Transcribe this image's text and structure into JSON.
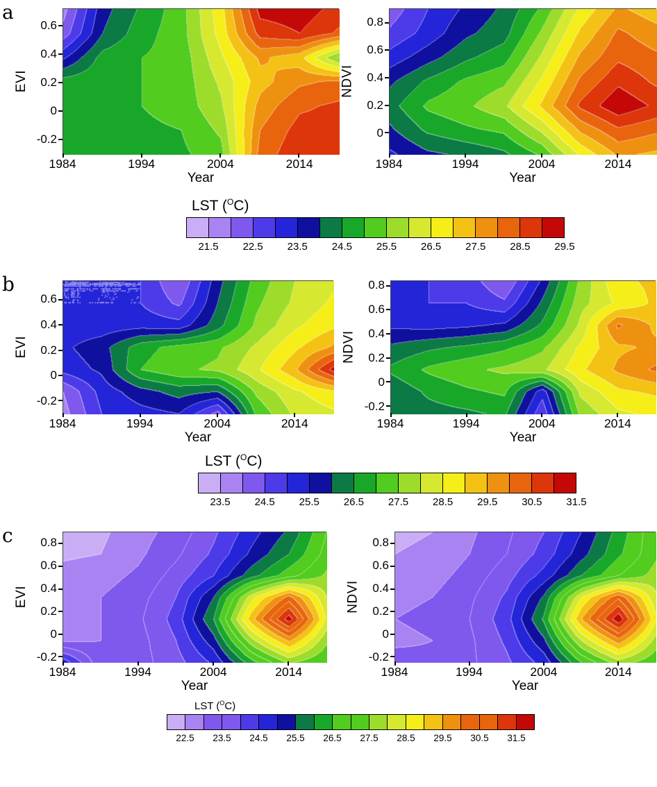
{
  "palette": [
    "#c9aef5",
    "#a983f2",
    "#7f58ee",
    "#4d3bea",
    "#2424d8",
    "#10109e",
    "#0c7a45",
    "#19a72a",
    "#52cc1e",
    "#9ddc2b",
    "#d6e930",
    "#f5ee19",
    "#f4c115",
    "#ef9110",
    "#e8650d",
    "#dc360a",
    "#c40808"
  ],
  "contour_line_color": "#d9d9d9",
  "chart_data": [
    {
      "type": "heatmap",
      "panel": "a",
      "colorbar": {
        "title": "LST (°C)",
        "title_pre": "LST (",
        "title_sup": "O",
        "title_post": "C)",
        "ticks": [
          21.5,
          22.5,
          23.5,
          24.5,
          25.5,
          26.5,
          27.5,
          28.5,
          29.5
        ],
        "tick_labels": [
          "21.5",
          "22.5",
          "23.5",
          "24.5",
          "25.5",
          "26.5",
          "27.5",
          "28.5",
          "29.5"
        ],
        "range": [
          21.0,
          29.5
        ],
        "interval": 0.5
      },
      "plots": [
        {
          "ylabel": "EVI",
          "xlabel": "Year",
          "x_range": [
            1984,
            2019
          ],
          "y_range": [
            -0.3,
            0.72
          ],
          "xticks": [
            1984,
            1994,
            2004,
            2014
          ],
          "xtick_labels": [
            "1984",
            "1994",
            "2004",
            "2014"
          ],
          "yticks": [
            0.6,
            0.4,
            0.2,
            0,
            -0.2
          ],
          "ytick_labels": [
            "0.6",
            "0.4",
            "0.2",
            "0",
            "-0.2"
          ],
          "x_years": [
            1984,
            1989,
            1994,
            1999,
            2004,
            2009,
            2014,
            2019
          ],
          "grid_y": [
            0.72,
            0.55,
            0.35,
            0.18,
            0.02,
            -0.15,
            -0.3
          ],
          "lst_values": [
            [
              21.8,
              23.8,
              24.6,
              25.3,
              26.8,
              29.2,
              29.3,
              28.8
            ],
            [
              22.2,
              24.0,
              24.8,
              25.3,
              26.7,
              28.7,
              29.0,
              28.4
            ],
            [
              23.4,
              24.7,
              25.0,
              25.2,
              26.4,
              27.6,
              27.2,
              25.4
            ],
            [
              24.7,
              24.9,
              25.0,
              25.2,
              26.1,
              27.3,
              27.9,
              28.1
            ],
            [
              24.9,
              25.0,
              25.0,
              25.2,
              25.9,
              27.7,
              28.4,
              28.6
            ],
            [
              24.8,
              24.8,
              24.9,
              25.0,
              25.6,
              28.0,
              28.7,
              28.7
            ],
            [
              24.6,
              24.6,
              24.7,
              24.9,
              25.3,
              28.2,
              28.9,
              28.9
            ]
          ]
        },
        {
          "ylabel": "NDVI",
          "xlabel": "Year",
          "x_range": [
            1984,
            2019
          ],
          "y_range": [
            -0.15,
            0.9
          ],
          "xticks": [
            1984,
            1994,
            2004,
            2014
          ],
          "xtick_labels": [
            "1984",
            "1994",
            "2004",
            "2014"
          ],
          "yticks": [
            0.8,
            0.6,
            0.4,
            0.2,
            0
          ],
          "ytick_labels": [
            "0.8",
            "0.6",
            "0.4",
            "0.2",
            "0"
          ],
          "x_years": [
            1984,
            1989,
            1994,
            1999,
            2004,
            2009,
            2014,
            2019
          ],
          "grid_y": [
            0.9,
            0.7,
            0.5,
            0.3,
            0.15,
            0.0,
            -0.15
          ],
          "lst_values": [
            [
              22.2,
              23.0,
              23.6,
              24.1,
              25.1,
              26.6,
              27.6,
              27.2
            ],
            [
              22.6,
              23.2,
              23.9,
              24.3,
              25.6,
              27.1,
              28.1,
              27.7
            ],
            [
              23.2,
              23.8,
              24.4,
              24.8,
              26.1,
              27.6,
              28.4,
              28.1
            ],
            [
              23.9,
              24.6,
              25.1,
              25.4,
              26.6,
              28.1,
              28.9,
              28.4
            ],
            [
              24.3,
              25.1,
              25.4,
              25.9,
              27.1,
              28.6,
              29.4,
              28.9
            ],
            [
              23.9,
              24.6,
              24.9,
              25.1,
              26.1,
              27.6,
              28.4,
              28.1
            ],
            [
              23.4,
              23.9,
              24.1,
              24.4,
              25.1,
              26.6,
              27.6,
              27.4
            ]
          ]
        }
      ]
    },
    {
      "type": "heatmap",
      "panel": "b",
      "colorbar": {
        "title": "LST (°C)",
        "title_pre": "LST (",
        "title_sup": "O",
        "title_post": "C)",
        "ticks": [
          23.5,
          24.5,
          25.5,
          26.5,
          27.5,
          28.5,
          29.5,
          30.5,
          31.5
        ],
        "tick_labels": [
          "23.5",
          "24.5",
          "25.5",
          "26.5",
          "27.5",
          "28.5",
          "29.5",
          "30.5",
          "31.5"
        ],
        "range": [
          23.0,
          31.5
        ],
        "interval": 0.5
      },
      "plots": [
        {
          "ylabel": "EVI",
          "xlabel": "Year",
          "x_range": [
            1984,
            2019
          ],
          "y_range": [
            -0.3,
            0.75
          ],
          "xticks": [
            1984,
            1994,
            2004,
            2014
          ],
          "xtick_labels": [
            "1984",
            "1994",
            "2004",
            "2014"
          ],
          "yticks": [
            0.6,
            0.4,
            0.2,
            0,
            -0.2
          ],
          "ytick_labels": [
            "0.6",
            "0.4",
            "0.2",
            "0",
            "-0.2"
          ],
          "x_years": [
            1984,
            1989,
            1994,
            1999,
            2004,
            2009,
            2014,
            2019
          ],
          "grid_y": [
            0.75,
            0.55,
            0.35,
            0.15,
            0.0,
            -0.15,
            -0.3
          ],
          "lst_values": [
            [
              25.0,
              25.0,
              25.0,
              24.0,
              25.8,
              27.2,
              28.0,
              28.4
            ],
            [
              25.0,
              25.0,
              25.0,
              24.4,
              26.0,
              27.4,
              28.1,
              28.6
            ],
            [
              25.2,
              25.2,
              25.3,
              25.2,
              26.3,
              27.6,
              28.4,
              28.9
            ],
            [
              25.4,
              25.8,
              26.8,
              27.2,
              27.4,
              28.1,
              28.9,
              29.6
            ],
            [
              25.2,
              25.6,
              27.0,
              27.4,
              27.6,
              28.4,
              29.4,
              31.2
            ],
            [
              24.0,
              25.2,
              25.8,
              26.2,
              26.0,
              27.6,
              28.4,
              28.9
            ],
            [
              23.8,
              25.0,
              25.3,
              25.5,
              24.3,
              27.1,
              28.1,
              28.4
            ]
          ]
        },
        {
          "ylabel": "NDVI",
          "xlabel": "Year",
          "x_range": [
            1984,
            2019
          ],
          "y_range": [
            -0.26,
            0.84
          ],
          "xticks": [
            1984,
            1994,
            2004,
            2014
          ],
          "xtick_labels": [
            "1984",
            "1994",
            "2004",
            "2014"
          ],
          "yticks": [
            0.8,
            0.6,
            0.4,
            0.2,
            0,
            -0.2
          ],
          "ytick_labels": [
            "0.8",
            "0.6",
            "0.4",
            "0.2",
            "0",
            "-0.2"
          ],
          "x_years": [
            1984,
            1989,
            1994,
            1999,
            2004,
            2009,
            2014,
            2019
          ],
          "grid_y": [
            0.84,
            0.64,
            0.44,
            0.24,
            0.1,
            -0.06,
            -0.26
          ],
          "lst_values": [
            [
              25.2,
              25.0,
              24.8,
              24.0,
              25.6,
              27.6,
              28.9,
              29.1
            ],
            [
              25.2,
              25.0,
              25.0,
              24.6,
              26.1,
              27.8,
              28.6,
              29.1
            ],
            [
              25.4,
              25.3,
              25.4,
              25.6,
              26.6,
              28.1,
              30.1,
              29.4
            ],
            [
              26.1,
              26.4,
              26.6,
              26.9,
              27.4,
              28.6,
              29.4,
              29.6
            ],
            [
              26.6,
              27.1,
              27.4,
              27.6,
              27.9,
              28.9,
              29.6,
              30.1
            ],
            [
              26.1,
              26.6,
              26.9,
              27.1,
              25.2,
              28.1,
              28.9,
              29.1
            ],
            [
              26.2,
              26.3,
              26.4,
              26.6,
              24.6,
              27.6,
              28.4,
              28.6
            ]
          ]
        }
      ]
    },
    {
      "type": "heatmap",
      "panel": "c",
      "colorbar": {
        "title": "LST (°C)",
        "title_pre": "LST (",
        "title_sup": "O",
        "title_post": "C)",
        "ticks": [
          22.5,
          23.5,
          24.5,
          25.5,
          26.5,
          27.5,
          28.5,
          29.5,
          30.5,
          31.5
        ],
        "tick_labels": [
          "22.5",
          "23.5",
          "24.5",
          "25.5",
          "26.5",
          "27.5",
          "28.5",
          "29.5",
          "30.5",
          "31.5"
        ],
        "range": [
          22.0,
          32.0
        ],
        "interval": 0.5
      },
      "plots": [
        {
          "ylabel": "EVI",
          "xlabel": "Year",
          "x_range": [
            1984,
            2019
          ],
          "y_range": [
            -0.24,
            0.9
          ],
          "xticks": [
            1984,
            1994,
            2004,
            2014
          ],
          "xtick_labels": [
            "1984",
            "1994",
            "2004",
            "2014"
          ],
          "yticks": [
            0.8,
            0.6,
            0.4,
            0.2,
            0,
            -0.2
          ],
          "ytick_labels": [
            "0.8",
            "0.6",
            "0.4",
            "0.2",
            "0",
            "-0.2"
          ],
          "x_years": [
            1984,
            1989,
            1994,
            1999,
            2004,
            2009,
            2014,
            2019
          ],
          "grid_y": [
            0.9,
            0.66,
            0.45,
            0.25,
            0.15,
            0.0,
            -0.24
          ],
          "lst_values": [
            [
              22.3,
              22.4,
              22.8,
              23.2,
              23.9,
              24.8,
              25.6,
              27.0
            ],
            [
              22.4,
              22.5,
              22.9,
              23.4,
              24.1,
              25.1,
              26.0,
              27.2
            ],
            [
              22.7,
              22.8,
              23.1,
              23.7,
              24.5,
              25.8,
              26.8,
              27.6
            ],
            [
              22.9,
              23.0,
              23.3,
              24.0,
              25.5,
              28.3,
              30.2,
              28.0
            ],
            [
              23.0,
              23.0,
              23.4,
              24.2,
              26.0,
              29.3,
              31.8,
              28.4
            ],
            [
              22.9,
              23.0,
              23.3,
              24.0,
              25.3,
              27.8,
              29.6,
              27.6
            ],
            [
              24.8,
              23.1,
              23.3,
              23.8,
              24.6,
              26.3,
              27.6,
              27.0
            ]
          ]
        },
        {
          "ylabel": "NDVI",
          "xlabel": "Year",
          "x_range": [
            1984,
            2019
          ],
          "y_range": [
            -0.24,
            0.9
          ],
          "xticks": [
            1984,
            1994,
            2004,
            2014
          ],
          "xtick_labels": [
            "1984",
            "1994",
            "2004",
            "2014"
          ],
          "yticks": [
            0.8,
            0.6,
            0.4,
            0.2,
            0,
            -0.2
          ],
          "ytick_labels": [
            "0.8",
            "0.6",
            "0.4",
            "0.2",
            "0",
            "-0.2"
          ],
          "x_years": [
            1984,
            1989,
            1994,
            1999,
            2004,
            2009,
            2014,
            2019
          ],
          "grid_y": [
            0.9,
            0.66,
            0.45,
            0.25,
            0.15,
            0.0,
            -0.24
          ],
          "lst_values": [
            [
              22.4,
              22.5,
              22.9,
              23.4,
              24.0,
              25.0,
              26.2,
              27.4
            ],
            [
              22.5,
              22.6,
              23.0,
              23.5,
              24.2,
              25.3,
              26.4,
              27.4
            ],
            [
              22.7,
              22.8,
              23.2,
              23.8,
              24.7,
              26.0,
              27.0,
              27.7
            ],
            [
              22.9,
              23.0,
              23.4,
              24.1,
              25.6,
              28.5,
              30.4,
              28.1
            ],
            [
              23.0,
              23.1,
              23.5,
              24.3,
              26.1,
              29.5,
              31.9,
              28.6
            ],
            [
              22.9,
              23.0,
              23.4,
              24.1,
              25.4,
              28.0,
              29.8,
              27.8
            ],
            [
              23.2,
              23.1,
              23.4,
              23.9,
              24.7,
              26.5,
              27.8,
              27.1
            ]
          ]
        }
      ]
    }
  ]
}
